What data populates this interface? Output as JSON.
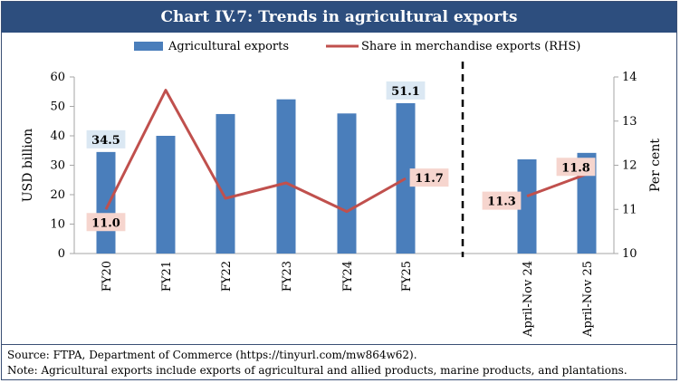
{
  "title": "Chart IV.7: Trends in agricultural exports",
  "chart_data": {
    "type": "bar",
    "title": "Chart IV.7: Trends in agricultural exports",
    "categories": [
      "FY20",
      "FY21",
      "FY22",
      "FY23",
      "FY24",
      "FY25",
      "April-Nov 24",
      "April-Nov 25"
    ],
    "series": [
      {
        "name": "Agricultural  exports",
        "type": "bar",
        "axis": "left",
        "color": "#4a7ebb",
        "values": [
          34.5,
          40.0,
          47.4,
          52.4,
          47.6,
          51.1,
          32.0,
          34.2
        ],
        "data_labels": [
          "34.5",
          "",
          "",
          "",
          "",
          "51.1",
          "",
          ""
        ]
      },
      {
        "name": "Share in merchandise exports (RHS)",
        "type": "line",
        "axis": "right",
        "color": "#c0504d",
        "segments": [
          [
            0,
            5
          ],
          [
            6,
            7
          ]
        ],
        "values": [
          11.0,
          13.7,
          11.25,
          11.6,
          10.95,
          11.7,
          11.3,
          11.8
        ],
        "data_labels": [
          "11.0",
          "",
          "",
          "",
          "",
          "11.7",
          "11.3",
          "11.8"
        ]
      }
    ],
    "ylabel": "USD billion",
    "ylim": [
      0,
      60
    ],
    "yticks": [
      "0",
      "10",
      "20",
      "30",
      "40",
      "50",
      "60"
    ],
    "y2label": "Per cent",
    "y2lim": [
      10,
      14
    ],
    "y2ticks": [
      "10",
      "11",
      "12",
      "13",
      "14"
    ],
    "legend_position": "top",
    "divider_after_category": "FY25"
  },
  "footer": {
    "source": "Source: FTPA, Department of Commerce (https://tinyurl.com/mw864w62).",
    "note": "Note: Agricultural exports include exports of agricultural and allied products, marine products, and plantations."
  }
}
